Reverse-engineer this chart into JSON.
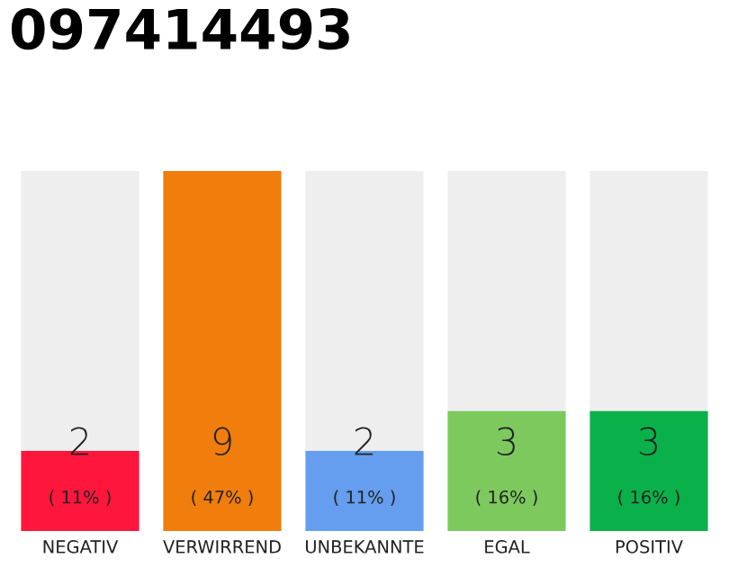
{
  "chart_data": {
    "type": "bar",
    "title": "097414493",
    "categories": [
      "NEGATIV",
      "VERWIRREND",
      "UNBEKANNTE",
      "EGAL",
      "POSITIV"
    ],
    "values": [
      2,
      9,
      2,
      3,
      3
    ],
    "colors": [
      "#ff163c",
      "#f07d0c",
      "#659eee",
      "#7dc95e",
      "#0ab14a"
    ],
    "data_labels": true,
    "annotations": [
      "( 11% )",
      "( 47% )",
      "( 11% )",
      "( 16% )",
      "( 16% )"
    ],
    "ylim": [
      0,
      9
    ],
    "tick_labels": "x",
    "grid": false
  }
}
